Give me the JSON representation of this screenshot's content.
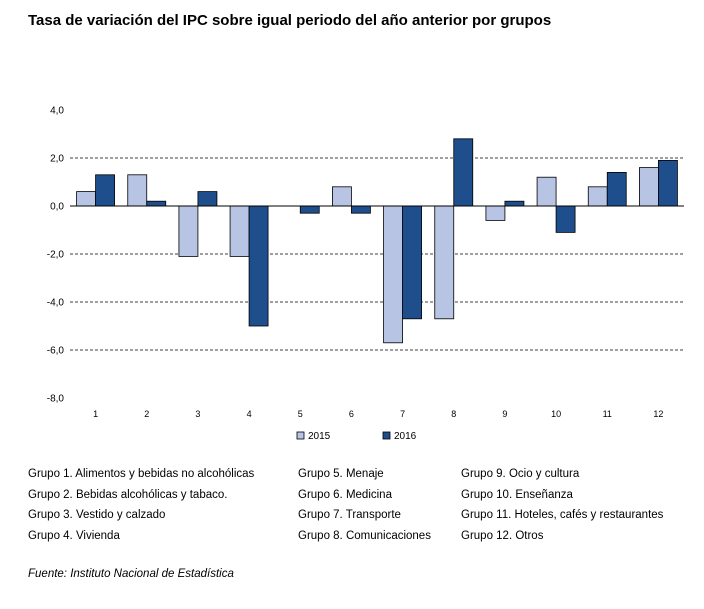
{
  "title": "Tasa de variación del IPC sobre igual periodo del año anterior por grupos",
  "chart_data": {
    "type": "bar",
    "categories": [
      "1",
      "2",
      "3",
      "4",
      "5",
      "6",
      "7",
      "8",
      "9",
      "10",
      "11",
      "12"
    ],
    "series": [
      {
        "name": "2015",
        "color": "#b8c4e4",
        "values": [
          0.6,
          1.3,
          -2.1,
          -2.1,
          0.0,
          0.8,
          -5.7,
          -4.7,
          -0.6,
          1.2,
          0.8,
          1.6
        ]
      },
      {
        "name": "2016",
        "color": "#1f4e8c",
        "values": [
          1.3,
          0.2,
          0.6,
          -5.0,
          -0.3,
          -0.3,
          -4.7,
          2.8,
          0.2,
          -1.1,
          1.4,
          1.9
        ]
      }
    ],
    "ylim": [
      -8.0,
      4.0
    ],
    "yticks": [
      "4,0",
      "2,0",
      "0,0",
      "-2,0",
      "-4,0",
      "-6,0",
      "-8,0"
    ],
    "gridlines": "dashed",
    "legend_position": "bottom"
  },
  "groups": {
    "col1": [
      "Grupo 1. Alimentos y bebidas no alcohólicas",
      "Grupo 2. Bebidas alcohólicas y  tabaco.",
      "Grupo 3. Vestido y calzado",
      "Grupo 4. Vivienda"
    ],
    "col2": [
      "Grupo 5. Menaje",
      "Grupo 6. Medicina",
      "Grupo 7. Transporte",
      "Grupo 8. Comunicaciones"
    ],
    "col3": [
      "Grupo 9. Ocio y cultura",
      "Grupo 10. Enseñanza",
      "Grupo 11. Hoteles, cafés y restaurantes",
      "Grupo 12. Otros"
    ]
  },
  "source": "Fuente: Instituto Nacional de Estadística"
}
